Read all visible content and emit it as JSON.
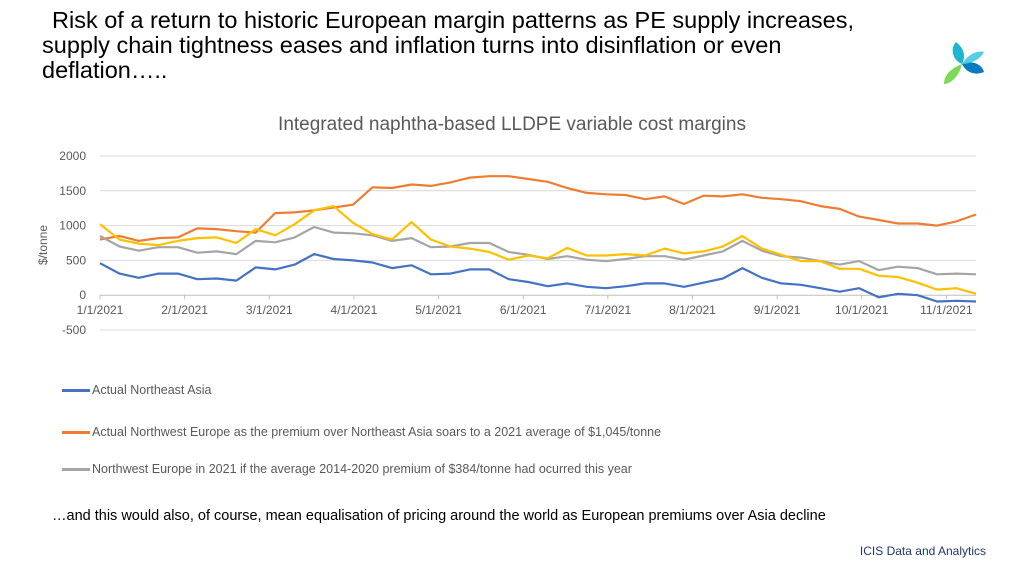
{
  "headline": {
    "line1": "Risk of a return to historic European margin patterns as PE supply increases,",
    "line2": "supply chain tightness eases and inflation turns into disinflation or even",
    "line3": "deflation….."
  },
  "logo": {
    "icon": "tri-leaf-logo-icon",
    "colors": [
      "#1fb5d0",
      "#7ed957",
      "#0a7bbf"
    ]
  },
  "chart_data": {
    "type": "line",
    "title": "Integrated naphtha-based LLDPE variable cost margins",
    "ylabel": "$/tonne",
    "xlabel": "",
    "ylim": [
      -500,
      2000
    ],
    "yticks": [
      2000,
      1500,
      1000,
      500,
      0,
      -500
    ],
    "x_tick_labels": [
      "1/1/2021",
      "2/1/2021",
      "3/1/2021",
      "4/1/2021",
      "5/1/2021",
      "6/1/2021",
      "7/1/2021",
      "8/1/2021",
      "9/1/2021",
      "10/1/2021",
      "11/1/2021"
    ],
    "grid": true,
    "legend_position": "bottom",
    "series": [
      {
        "name": "Actual Northeast Asia",
        "color": "#4472c4",
        "values": [
          460,
          310,
          250,
          310,
          310,
          230,
          240,
          210,
          400,
          370,
          440,
          590,
          520,
          500,
          470,
          390,
          430,
          300,
          310,
          370,
          370,
          230,
          190,
          130,
          170,
          120,
          100,
          130,
          170,
          170,
          120,
          180,
          240,
          390,
          250,
          170,
          150,
          100,
          50,
          100,
          -30,
          20,
          0,
          -90,
          -80,
          -90
        ]
      },
      {
        "name": "Actual Northwest Europe as the premium over Northeast Asia soars to a 2021 average of $1,045/tonne",
        "color": "#ed7d31",
        "values": [
          800,
          850,
          780,
          820,
          830,
          960,
          950,
          920,
          900,
          1180,
          1190,
          1220,
          1260,
          1300,
          1550,
          1540,
          1590,
          1570,
          1620,
          1690,
          1710,
          1710,
          1670,
          1630,
          1540,
          1470,
          1450,
          1440,
          1380,
          1420,
          1310,
          1430,
          1420,
          1450,
          1400,
          1380,
          1350,
          1280,
          1240,
          1130,
          1080,
          1030,
          1030,
          1000,
          1060,
          1160
        ]
      },
      {
        "name": "Northwest Europe in 2021 if the average 2014-2020  premium of $384/tonne had ocurred this year",
        "color": "#a5a5a5",
        "values": [
          850,
          700,
          640,
          690,
          690,
          610,
          630,
          590,
          780,
          760,
          830,
          980,
          900,
          890,
          860,
          780,
          820,
          690,
          700,
          750,
          750,
          620,
          580,
          520,
          560,
          510,
          490,
          520,
          560,
          560,
          510,
          570,
          630,
          780,
          640,
          560,
          540,
          490,
          440,
          490,
          360,
          410,
          390,
          300,
          310,
          300
        ]
      },
      {
        "name": "",
        "color": "#ffc000",
        "values": [
          1020,
          800,
          740,
          720,
          780,
          820,
          830,
          750,
          950,
          860,
          1020,
          1220,
          1280,
          1040,
          880,
          800,
          1050,
          800,
          700,
          670,
          620,
          510,
          570,
          530,
          680,
          570,
          570,
          590,
          570,
          670,
          600,
          630,
          700,
          850,
          670,
          580,
          490,
          490,
          380,
          380,
          280,
          260,
          180,
          80,
          100,
          20
        ]
      }
    ]
  },
  "footnote": "…and this would also, of course, mean equalisation of pricing around the world as European premiums over Asia decline",
  "credit": "ICIS Data and Analytics"
}
